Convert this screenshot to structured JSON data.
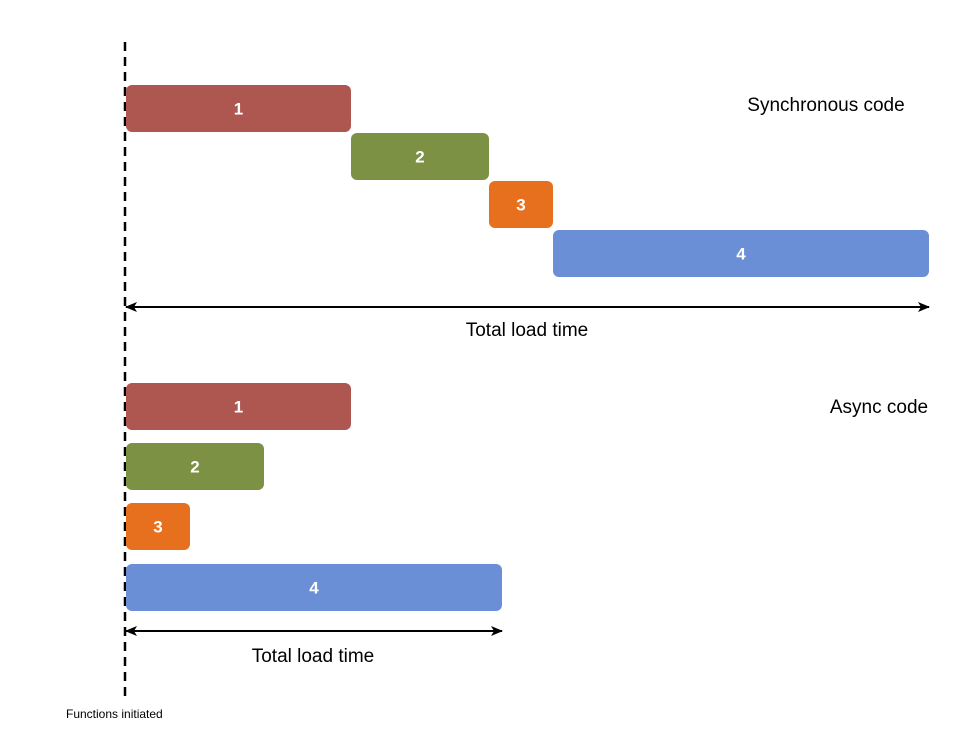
{
  "colors": {
    "task_1": "#ae5751",
    "task_2": "#7d9145",
    "task_3": "#e6701e",
    "task_4": "#6a8fd6",
    "line": "#000000"
  },
  "start_marker": {
    "label": "Functions initiated"
  },
  "synchronous": {
    "title": "Synchronous code",
    "span_label": "Total load time",
    "tasks": [
      {
        "label": "1",
        "start": 0,
        "duration": 225,
        "color_key": "task_1"
      },
      {
        "label": "2",
        "start": 225,
        "duration": 138,
        "color_key": "task_2"
      },
      {
        "label": "3",
        "start": 363,
        "duration": 64,
        "color_key": "task_3"
      },
      {
        "label": "4",
        "start": 427,
        "duration": 376,
        "color_key": "task_4"
      }
    ],
    "total": 803
  },
  "async": {
    "title": "Async code",
    "span_label": "Total load time",
    "tasks": [
      {
        "label": "1",
        "start": 0,
        "duration": 225,
        "color_key": "task_1"
      },
      {
        "label": "2",
        "start": 0,
        "duration": 138,
        "color_key": "task_2"
      },
      {
        "label": "3",
        "start": 0,
        "duration": 64,
        "color_key": "task_3"
      },
      {
        "label": "4",
        "start": 0,
        "duration": 376,
        "color_key": "task_4"
      }
    ],
    "total": 376
  }
}
